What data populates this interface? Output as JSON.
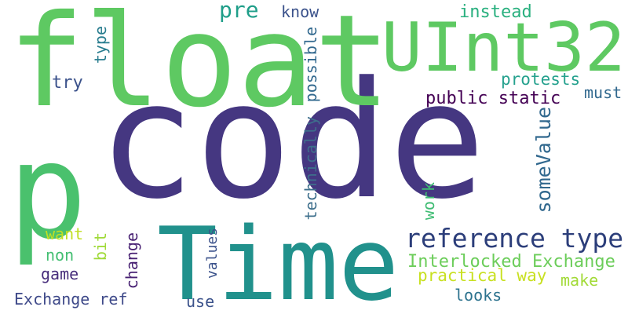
{
  "words": [
    {
      "text": "code",
      "color": "#453781"
    },
    {
      "text": "float",
      "color": "#5ec962"
    },
    {
      "text": "UInt32",
      "color": "#5ec962"
    },
    {
      "text": "Time",
      "color": "#21918c"
    },
    {
      "text": "p",
      "color": "#4ac16d"
    },
    {
      "text": "reference type",
      "color": "#2c3e7a"
    },
    {
      "text": "pre",
      "color": "#1f9e89"
    },
    {
      "text": "know",
      "color": "#3b528b"
    },
    {
      "text": "instead",
      "color": "#2ab07f"
    },
    {
      "text": "protests",
      "color": "#25a18e"
    },
    {
      "text": "public static",
      "color": "#440154"
    },
    {
      "text": "must",
      "color": "#31688e"
    },
    {
      "text": "try",
      "color": "#3b528b"
    },
    {
      "text": "type",
      "color": "#287c8e"
    },
    {
      "text": "possible",
      "color": "#31688e"
    },
    {
      "text": "technically",
      "color": "#3e6f8c"
    },
    {
      "text": "someValue",
      "color": "#31688e"
    },
    {
      "text": "work",
      "color": "#3fbc73"
    },
    {
      "text": "Interlocked Exchange",
      "color": "#6ccd5a"
    },
    {
      "text": "practical way",
      "color": "#c8e020"
    },
    {
      "text": "make",
      "color": "#a2da37"
    },
    {
      "text": "looks",
      "color": "#2c728e"
    },
    {
      "text": "want",
      "color": "#c2df23"
    },
    {
      "text": "non",
      "color": "#42be71"
    },
    {
      "text": "bit",
      "color": "#a0da39"
    },
    {
      "text": "game",
      "color": "#472d7b"
    },
    {
      "text": "change",
      "color": "#482173"
    },
    {
      "text": "values",
      "color": "#3b528b"
    },
    {
      "text": "use",
      "color": "#3b528b"
    },
    {
      "text": "Exchange ref",
      "color": "#3e4989"
    }
  ]
}
